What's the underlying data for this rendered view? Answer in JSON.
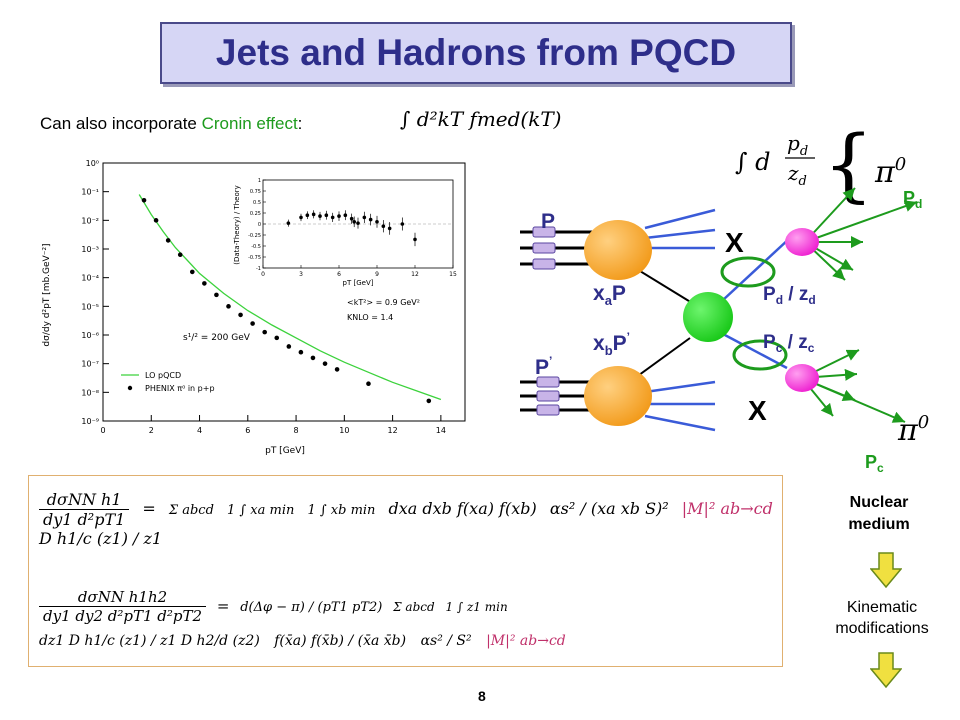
{
  "slide": {
    "title": "Jets and Hadrons from PQCD",
    "intro_prefix": "Can also incorporate ",
    "intro_highlight": "Cronin effect",
    "intro_suffix": ":",
    "page_number": "8",
    "colors": {
      "title_bg": "#d6d6f5",
      "title_text": "#2e2e8a",
      "highlight": "#1d9b1d",
      "arrow": "#f0e040"
    }
  },
  "plot": {
    "y_axis_label": "dσ/dy d²pT [mb.GeV⁻²]",
    "x_axis_label": "pT [GeV]",
    "y_ticks": [
      "10⁰",
      "10⁻¹",
      "10⁻²",
      "10⁻³",
      "10⁻⁴",
      "10⁻⁵",
      "10⁻⁶",
      "10⁻⁷",
      "10⁻⁸",
      "10⁻⁹"
    ],
    "x_ticks": [
      "0",
      "2",
      "4",
      "6",
      "8",
      "10",
      "12",
      "14"
    ],
    "energy_label": "s¹/² = 200 GeV",
    "kt_label": "<kT²> = 0.9 GeV²",
    "knlo_label": "KNLO = 1.4",
    "legend_curve": "LO pQCD",
    "legend_points": "PHENIX π⁰ in p+p",
    "inset_y_label": "(Data-Theory) / Theory",
    "inset_x_label": "pT [GeV]",
    "inset_x_ticks": [
      "0",
      "3",
      "6",
      "9",
      "12",
      "15"
    ],
    "inset_y_ticks": [
      "1",
      "0.75",
      "0.5",
      "0.25",
      "0",
      "-0.25",
      "-0.5",
      "-0.75",
      "-1"
    ]
  },
  "chart_data": {
    "type": "scatter",
    "xlabel": "pT [GeV]",
    "ylabel": "dσ/dy d²pT [mb.GeV⁻²]",
    "xlim": [
      0,
      15
    ],
    "ylim_log10": [
      -9,
      0
    ],
    "y_scale": "log",
    "series": [
      {
        "name": "PHENIX π⁰ in p+p",
        "kind": "points",
        "x": [
          1.7,
          2.2,
          2.7,
          3.2,
          3.7,
          4.2,
          4.7,
          5.2,
          5.7,
          6.2,
          6.7,
          7.2,
          7.7,
          8.2,
          8.7,
          9.2,
          9.7,
          11,
          13.5
        ],
        "log10_y": [
          -1.3,
          -2.0,
          -2.7,
          -3.2,
          -3.8,
          -4.2,
          -4.6,
          -5.0,
          -5.3,
          -5.6,
          -5.9,
          -6.1,
          -6.4,
          -6.6,
          -6.8,
          -7.0,
          -7.2,
          -7.7,
          -8.3
        ]
      },
      {
        "name": "LO pQCD",
        "kind": "curve",
        "x": [
          1.5,
          2,
          2.5,
          3,
          3.5,
          4,
          5,
          6,
          7,
          8,
          9,
          10,
          11,
          12,
          13,
          14
        ],
        "log10_y": [
          -1.1,
          -1.8,
          -2.4,
          -2.95,
          -3.4,
          -3.85,
          -4.55,
          -5.15,
          -5.65,
          -6.1,
          -6.55,
          -6.95,
          -7.3,
          -7.65,
          -7.95,
          -8.25
        ]
      }
    ],
    "inset": {
      "x": [
        2,
        3,
        3.5,
        4,
        4.5,
        5,
        5.5,
        6,
        6.5,
        7,
        7.2,
        7.5,
        8,
        8.5,
        9,
        9.5,
        10,
        11,
        12
      ],
      "y": [
        0.02,
        0.15,
        0.2,
        0.22,
        0.18,
        0.2,
        0.15,
        0.18,
        0.2,
        0.12,
        0.05,
        0.02,
        0.15,
        0.1,
        0.05,
        -0.05,
        -0.1,
        0.0,
        -0.35
      ]
    }
  },
  "diagram": {
    "p_top": "P",
    "p_bottom": "P",
    "p_bottom_prime": "’",
    "xa_x": "x",
    "xa_sub": "a",
    "xa_p": "P",
    "xb_x": "x",
    "xb_sub": "b",
    "xb_p": "P",
    "xb_prime": "’",
    "cross_top": "X",
    "cross_bottom": "X",
    "pd_over_zd_p": "P",
    "pd_over_zd_d1": "d",
    "pd_over_zd_mid": " / z",
    "pd_over_zd_d2": "d",
    "pc_over_zc_p": "P",
    "pc_over_zc_c1": "c",
    "pc_over_zc_mid": " / z",
    "pc_over_zc_c2": "c",
    "pd_label_p": "P",
    "pd_label_sub": "d",
    "pc_label_p": "P",
    "pc_label_sub": "c",
    "pi0_top": "π",
    "pi0_top_sup": "0",
    "pi0_bottom": "π",
    "pi0_bottom_sup": "0",
    "frag_int": "∫ d",
    "frag_num": "p",
    "frag_num_sub": "d",
    "frag_den": "z",
    "frag_den_sub": "d",
    "brace": "{"
  },
  "right_panel": {
    "nuclear_line1": "Nuclear",
    "nuclear_line2": "medium",
    "kinematic_line1": "Kinematic",
    "kinematic_line2": "modifications"
  },
  "formulas": {
    "intro_eq": "∫ d²kT fmed(kT)",
    "eq1_lhs_num": "dσNN h1",
    "eq1_lhs_den": "dy1 d²pT1",
    "eq1_eq": "=",
    "eq1_sum": "Σ abcd",
    "eq1_int1": "1 ∫ xa min",
    "eq1_int2": "1 ∫ xb min",
    "eq1_body": "dxa dxb f(xa) f(xb)",
    "eq1_coupling": "αs² / (xa xb S)²",
    "eq1_matrix": "|M|² ab→cd",
    "eq1_frag": "D h1/c (z1) / z1",
    "eq2_lhs_num": "dσNN h1h2",
    "eq2_lhs_den": "dy1 dy2 d²pT1 d²pT2",
    "eq2_eq": "=",
    "eq2_delta": "d(Δφ − π) / (pT1 pT2)",
    "eq2_sum": "Σ abcd",
    "eq2_int": "1 ∫ z1 min",
    "eq2_body": "dz1 D h1/c (z1) / z1 D h2/d (z2)",
    "eq2_pdf": "f(x̄a) f(x̄b) / (x̄a x̄b)",
    "eq2_coupling": "αs² / S²",
    "eq2_matrix": "|M|² ab→cd"
  }
}
